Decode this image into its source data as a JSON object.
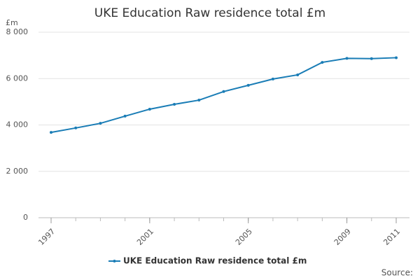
{
  "chart_data": {
    "type": "line",
    "title": "UKE Education Raw residence total £m",
    "y_unit": "£m",
    "x": [
      1997,
      1998,
      1999,
      2000,
      2001,
      2002,
      2003,
      2004,
      2005,
      2006,
      2007,
      2008,
      2009,
      2010,
      2011
    ],
    "series": [
      {
        "name": "UKE Education Raw residence total £m",
        "color": "#1a7db6",
        "values": [
          3680,
          3870,
          4070,
          4380,
          4680,
          4890,
          5070,
          5440,
          5710,
          5980,
          6160,
          6700,
          6870,
          6860,
          6900
        ]
      }
    ],
    "xlim": [
      1997,
      2011
    ],
    "xticks": [
      1997,
      2001,
      2005,
      2009,
      2011
    ],
    "ylim": [
      0,
      8000
    ],
    "yticks": [
      0,
      {
        "value": 2000,
        "label": "2 000"
      },
      {
        "value": 4000,
        "label": "4 000"
      },
      {
        "value": 6000,
        "label": "6 000"
      },
      {
        "value": 8000,
        "label": "8 000"
      }
    ],
    "grid": true,
    "legend": "bottom",
    "source": "Source:"
  }
}
